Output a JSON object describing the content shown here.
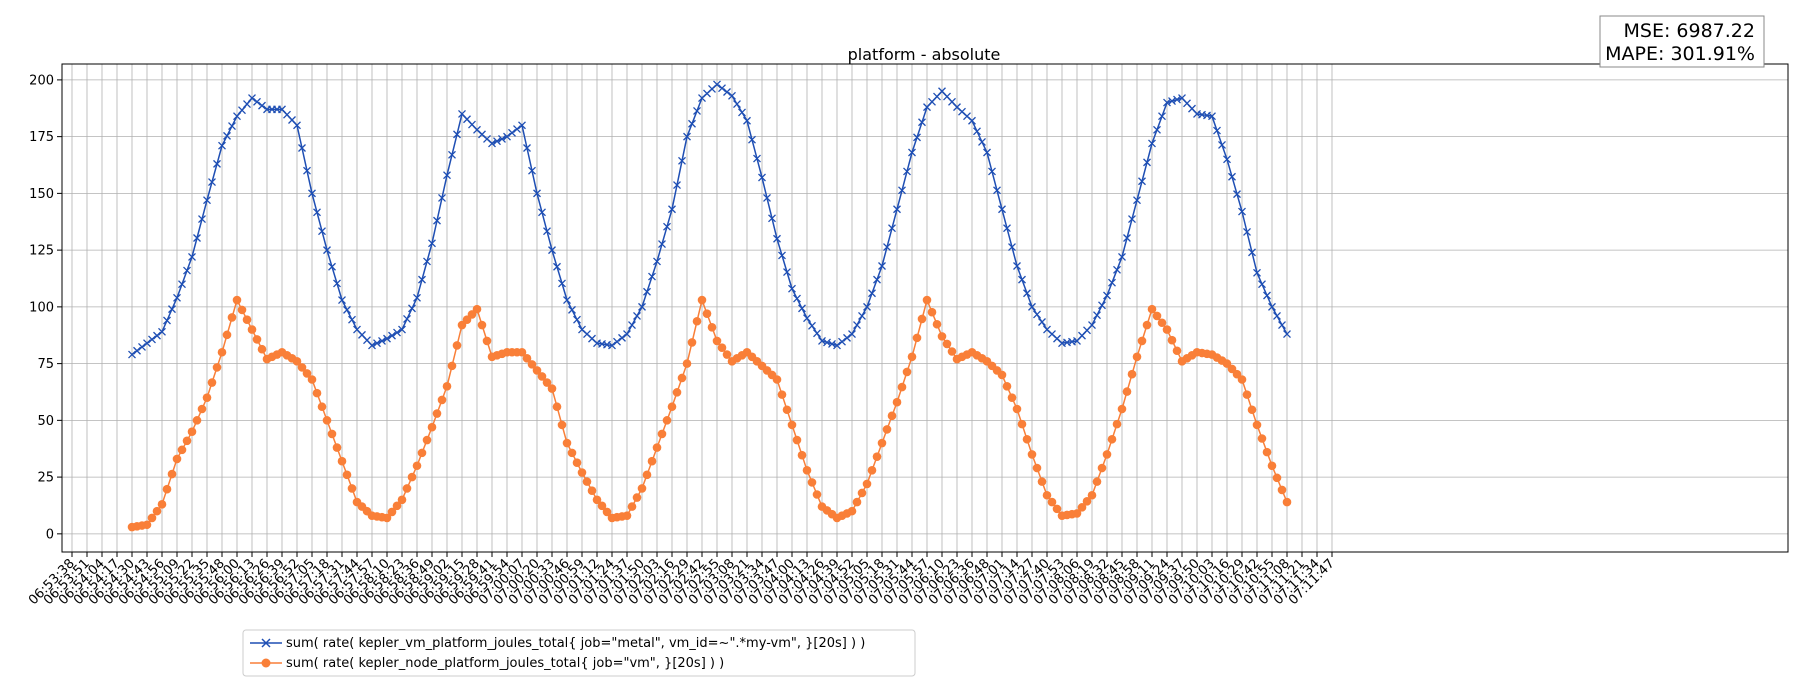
{
  "chart_data": {
    "type": "line",
    "title": "platform - absolute",
    "metrics": {
      "mse": "MSE: 6987.22",
      "mape": "MAPE: 301.91%"
    },
    "ylim": [
      -8,
      207
    ],
    "y_ticks": [
      0,
      25,
      50,
      75,
      100,
      125,
      150,
      175,
      200
    ],
    "grid": true,
    "legend_placement": "below the plot, bottom-left",
    "x_tick_labels": [
      "06:53:38",
      "06:53:51",
      "06:54:04",
      "06:54:17",
      "06:54:30",
      "06:54:43",
      "06:54:56",
      "06:55:09",
      "06:55:22",
      "06:55:35",
      "06:55:48",
      "06:56:00",
      "06:56:13",
      "06:56:26",
      "06:56:39",
      "06:56:52",
      "06:57:05",
      "06:57:18",
      "06:57:31",
      "06:57:44",
      "06:57:57",
      "06:58:10",
      "06:58:23",
      "06:58:36",
      "06:58:49",
      "06:59:02",
      "06:59:15",
      "06:59:28",
      "06:59:41",
      "06:59:54",
      "07:00:07",
      "07:00:20",
      "07:00:33",
      "07:00:46",
      "07:00:59",
      "07:01:12",
      "07:01:24",
      "07:01:37",
      "07:01:50",
      "07:02:03",
      "07:02:16",
      "07:02:29",
      "07:02:42",
      "07:02:55",
      "07:03:08",
      "07:03:21",
      "07:03:34",
      "07:03:47",
      "07:04:00",
      "07:04:13",
      "07:04:26",
      "07:04:39",
      "07:04:52",
      "07:05:05",
      "07:05:18",
      "07:05:31",
      "07:05:44",
      "07:05:57",
      "07:06:10",
      "07:06:23",
      "07:06:36",
      "07:06:48",
      "07:07:01",
      "07:07:14",
      "07:07:27",
      "07:07:40",
      "07:07:53",
      "07:08:06",
      "07:08:19",
      "07:08:32",
      "07:08:45",
      "07:08:58",
      "07:09:11",
      "07:09:24",
      "07:09:37",
      "07:09:50",
      "07:10:03",
      "07:10:16",
      "07:10:29",
      "07:10:42",
      "07:10:55",
      "07:11:08",
      "07:11:21",
      "07:11:34",
      "07:11:47"
    ],
    "series": [
      {
        "name": "sum( rate( kepler_vm_platform_joules_total{ job=\"metal\", vm_id=~\".*my-vm\", }[20s] ) )",
        "color": "#1f4fb4",
        "marker": "x",
        "points": [
          [
            "06:54:30",
            79
          ],
          [
            "06:54:43",
            84
          ],
          [
            "06:54:56",
            89
          ],
          [
            "06:55:09",
            104
          ],
          [
            "06:55:22",
            122
          ],
          [
            "06:55:35",
            147
          ],
          [
            "06:55:48",
            171
          ],
          [
            "06:56:00",
            184
          ],
          [
            "06:56:13",
            192
          ],
          [
            "06:56:26",
            187
          ],
          [
            "06:56:39",
            187
          ],
          [
            "06:56:52",
            180
          ],
          [
            "06:57:05",
            150
          ],
          [
            "06:57:18",
            125
          ],
          [
            "06:57:31",
            103
          ],
          [
            "06:57:44",
            90
          ],
          [
            "06:57:57",
            83
          ],
          [
            "06:58:10",
            86
          ],
          [
            "06:58:23",
            90
          ],
          [
            "06:58:36",
            104
          ],
          [
            "06:58:49",
            128
          ],
          [
            "06:59:02",
            158
          ],
          [
            "06:59:15",
            185
          ],
          [
            "06:59:28",
            178
          ],
          [
            "06:59:41",
            172
          ],
          [
            "06:59:54",
            175
          ],
          [
            "07:00:07",
            180
          ],
          [
            "07:00:20",
            150
          ],
          [
            "07:00:33",
            125
          ],
          [
            "07:00:46",
            103
          ],
          [
            "07:00:59",
            90
          ],
          [
            "07:01:12",
            84
          ],
          [
            "07:01:24",
            83
          ],
          [
            "07:01:37",
            88
          ],
          [
            "07:01:50",
            100
          ],
          [
            "07:02:03",
            120
          ],
          [
            "07:02:16",
            143
          ],
          [
            "07:02:29",
            175
          ],
          [
            "07:02:42",
            192
          ],
          [
            "07:02:55",
            198
          ],
          [
            "07:03:08",
            193
          ],
          [
            "07:03:21",
            182
          ],
          [
            "07:03:34",
            157
          ],
          [
            "07:03:47",
            130
          ],
          [
            "07:04:00",
            108
          ],
          [
            "07:04:13",
            95
          ],
          [
            "07:04:26",
            85
          ],
          [
            "07:04:39",
            83
          ],
          [
            "07:04:52",
            88
          ],
          [
            "07:05:05",
            100
          ],
          [
            "07:05:18",
            118
          ],
          [
            "07:05:31",
            143
          ],
          [
            "07:05:44",
            168
          ],
          [
            "07:05:57",
            188
          ],
          [
            "07:06:10",
            195
          ],
          [
            "07:06:23",
            188
          ],
          [
            "07:06:36",
            182
          ],
          [
            "07:06:48",
            168
          ],
          [
            "07:07:01",
            143
          ],
          [
            "07:07:14",
            118
          ],
          [
            "07:07:27",
            100
          ],
          [
            "07:07:40",
            90
          ],
          [
            "07:07:53",
            84
          ],
          [
            "07:08:06",
            85
          ],
          [
            "07:08:19",
            92
          ],
          [
            "07:08:32",
            105
          ],
          [
            "07:08:45",
            122
          ],
          [
            "07:08:58",
            147
          ],
          [
            "07:09:11",
            172
          ],
          [
            "07:09:24",
            190
          ],
          [
            "07:09:37",
            192
          ],
          [
            "07:09:50",
            185
          ],
          [
            "07:10:03",
            184
          ],
          [
            "07:10:16",
            165
          ],
          [
            "07:10:29",
            142
          ],
          [
            "07:10:42",
            115
          ],
          [
            "07:10:55",
            100
          ],
          [
            "07:11:08",
            88
          ]
        ]
      },
      {
        "name": "sum( rate( kepler_node_platform_joules_total{ job=\"vm\", }[20s] ) )",
        "color": "#f97f38",
        "marker": "o",
        "points": [
          [
            "06:54:30",
            3
          ],
          [
            "06:54:43",
            4
          ],
          [
            "06:54:56",
            13
          ],
          [
            "06:55:09",
            33
          ],
          [
            "06:55:22",
            45
          ],
          [
            "06:55:35",
            60
          ],
          [
            "06:55:48",
            80
          ],
          [
            "06:56:00",
            103
          ],
          [
            "06:56:13",
            90
          ],
          [
            "06:56:26",
            77
          ],
          [
            "06:56:39",
            80
          ],
          [
            "06:56:52",
            76
          ],
          [
            "06:57:05",
            68
          ],
          [
            "06:57:18",
            50
          ],
          [
            "06:57:31",
            32
          ],
          [
            "06:57:44",
            14
          ],
          [
            "06:57:57",
            8
          ],
          [
            "06:58:10",
            7
          ],
          [
            "06:58:23",
            15
          ],
          [
            "06:58:36",
            30
          ],
          [
            "06:58:49",
            47
          ],
          [
            "06:59:02",
            65
          ],
          [
            "06:59:15",
            92
          ],
          [
            "06:59:28",
            99
          ],
          [
            "06:59:41",
            78
          ],
          [
            "06:59:54",
            80
          ],
          [
            "07:00:07",
            80
          ],
          [
            "07:00:20",
            72
          ],
          [
            "07:00:33",
            64
          ],
          [
            "07:00:46",
            40
          ],
          [
            "07:00:59",
            27
          ],
          [
            "07:01:12",
            15
          ],
          [
            "07:01:24",
            7
          ],
          [
            "07:01:37",
            8
          ],
          [
            "07:01:50",
            20
          ],
          [
            "07:02:03",
            38
          ],
          [
            "07:02:16",
            56
          ],
          [
            "07:02:29",
            75
          ],
          [
            "07:02:42",
            103
          ],
          [
            "07:02:55",
            85
          ],
          [
            "07:03:08",
            76
          ],
          [
            "07:03:21",
            80
          ],
          [
            "07:03:34",
            74
          ],
          [
            "07:03:47",
            68
          ],
          [
            "07:04:00",
            48
          ],
          [
            "07:04:13",
            28
          ],
          [
            "07:04:26",
            12
          ],
          [
            "07:04:39",
            7
          ],
          [
            "07:04:52",
            10
          ],
          [
            "07:05:05",
            22
          ],
          [
            "07:05:18",
            40
          ],
          [
            "07:05:31",
            58
          ],
          [
            "07:05:44",
            78
          ],
          [
            "07:05:57",
            103
          ],
          [
            "07:06:10",
            87
          ],
          [
            "07:06:23",
            77
          ],
          [
            "07:06:36",
            80
          ],
          [
            "07:06:48",
            76
          ],
          [
            "07:07:01",
            70
          ],
          [
            "07:07:14",
            55
          ],
          [
            "07:07:27",
            35
          ],
          [
            "07:07:40",
            17
          ],
          [
            "07:07:53",
            8
          ],
          [
            "07:08:06",
            9
          ],
          [
            "07:08:19",
            17
          ],
          [
            "07:08:32",
            35
          ],
          [
            "07:08:45",
            55
          ],
          [
            "07:08:58",
            78
          ],
          [
            "07:09:11",
            99
          ],
          [
            "07:09:24",
            90
          ],
          [
            "07:09:37",
            76
          ],
          [
            "07:09:50",
            80
          ],
          [
            "07:10:03",
            79
          ],
          [
            "07:10:16",
            75
          ],
          [
            "07:10:29",
            68
          ],
          [
            "07:10:42",
            48
          ],
          [
            "07:10:55",
            30
          ],
          [
            "07:11:08",
            14
          ]
        ]
      }
    ]
  }
}
